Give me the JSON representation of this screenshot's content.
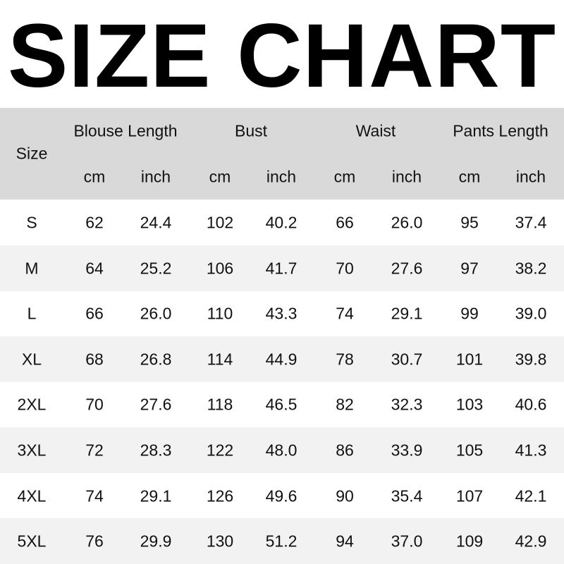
{
  "title": "SIZE CHART",
  "header": {
    "size_label": "Size",
    "groups": [
      "Blouse Length",
      "Bust",
      "Waist",
      "Pants Length"
    ],
    "units": [
      "cm",
      "inch",
      "cm",
      "inch",
      "cm",
      "inch",
      "cm",
      "inch"
    ]
  },
  "colors": {
    "header_bg": "#d9d9d9",
    "alt_row_bg": "#f2f2f2"
  },
  "rows": [
    [
      "S",
      "62",
      "24.4",
      "102",
      "40.2",
      "66",
      "26.0",
      "95",
      "37.4"
    ],
    [
      "M",
      "64",
      "25.2",
      "106",
      "41.7",
      "70",
      "27.6",
      "97",
      "38.2"
    ],
    [
      "L",
      "66",
      "26.0",
      "110",
      "43.3",
      "74",
      "29.1",
      "99",
      "39.0"
    ],
    [
      "XL",
      "68",
      "26.8",
      "114",
      "44.9",
      "78",
      "30.7",
      "101",
      "39.8"
    ],
    [
      "2XL",
      "70",
      "27.6",
      "118",
      "46.5",
      "82",
      "32.3",
      "103",
      "40.6"
    ],
    [
      "3XL",
      "72",
      "28.3",
      "122",
      "48.0",
      "86",
      "33.9",
      "105",
      "41.3"
    ],
    [
      "4XL",
      "74",
      "29.1",
      "126",
      "49.6",
      "90",
      "35.4",
      "107",
      "42.1"
    ],
    [
      "5XL",
      "76",
      "29.9",
      "130",
      "51.2",
      "94",
      "37.0",
      "109",
      "42.9"
    ]
  ]
}
